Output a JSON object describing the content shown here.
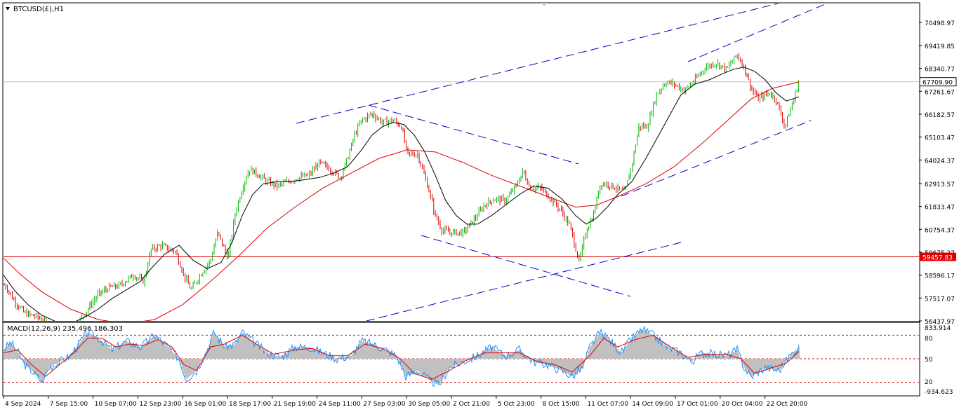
{
  "chart_data": [
    {
      "type": "line",
      "title": "BTCUSD(£),H1",
      "ylim": [
        56437.97,
        71398.9
      ],
      "y_ticks": [
        "70498.97",
        "69419.85",
        "68340.77",
        "67261.67",
        "66182.57",
        "65103.47",
        "64024.37",
        "62913.57",
        "61833.47",
        "60754.37",
        "59675.27",
        "58596.17",
        "57517.07",
        "56437.97"
      ],
      "x_ticks": [
        "4 Sep 2024",
        "7 Sep 15:00",
        "10 Sep 07:00",
        "12 Sep 23:00",
        "16 Sep 01:00",
        "18 Sep 17:00",
        "21 Sep 19:00",
        "24 Sep 11:00",
        "27 Sep 03:00",
        "30 Sep 05:00",
        "2 Oct 21:00",
        "5 Oct 23:00",
        "8 Oct 15:00",
        "11 Oct 07:00",
        "14 Oct 09:00",
        "17 Oct 01:00",
        "20 Oct 04:00",
        "22 Oct 20:00"
      ],
      "current_price": {
        "label": "67709.90",
        "value": 67709.9,
        "color": "#c0c0c0"
      },
      "horizontal_line": {
        "label": "59457.83",
        "value": 59457.83,
        "color": "#e00000"
      },
      "price_path": [
        [
          0,
          58300
        ],
        [
          10,
          58000
        ],
        [
          20,
          57400
        ],
        [
          35,
          56800
        ],
        [
          55,
          56600
        ],
        [
          70,
          56200
        ],
        [
          90,
          56000
        ],
        [
          110,
          56300
        ],
        [
          125,
          57000
        ],
        [
          140,
          57700
        ],
        [
          155,
          58000
        ],
        [
          170,
          58100
        ],
        [
          190,
          58600
        ],
        [
          205,
          58300
        ],
        [
          215,
          59800
        ],
        [
          230,
          60000
        ],
        [
          250,
          59700
        ],
        [
          262,
          58600
        ],
        [
          272,
          57900
        ],
        [
          285,
          58600
        ],
        [
          300,
          59300
        ],
        [
          310,
          60600
        ],
        [
          325,
          59400
        ],
        [
          335,
          61500
        ],
        [
          345,
          62700
        ],
        [
          355,
          63600
        ],
        [
          365,
          63400
        ],
        [
          380,
          63000
        ],
        [
          395,
          62800
        ],
        [
          410,
          63000
        ],
        [
          425,
          63200
        ],
        [
          440,
          63300
        ],
        [
          455,
          63900
        ],
        [
          470,
          63600
        ],
        [
          485,
          63200
        ],
        [
          495,
          64100
        ],
        [
          505,
          65200
        ],
        [
          515,
          65900
        ],
        [
          530,
          66200
        ],
        [
          545,
          65800
        ],
        [
          560,
          65900
        ],
        [
          572,
          65600
        ],
        [
          580,
          64300
        ],
        [
          595,
          64300
        ],
        [
          610,
          62700
        ],
        [
          620,
          61400
        ],
        [
          630,
          60700
        ],
        [
          645,
          60600
        ],
        [
          660,
          60600
        ],
        [
          675,
          61200
        ],
        [
          690,
          61900
        ],
        [
          705,
          62200
        ],
        [
          720,
          62100
        ],
        [
          735,
          62800
        ],
        [
          745,
          63500
        ],
        [
          755,
          62700
        ],
        [
          770,
          62700
        ],
        [
          785,
          62200
        ],
        [
          800,
          61600
        ],
        [
          812,
          60900
        ],
        [
          825,
          59200
        ],
        [
          835,
          60700
        ],
        [
          845,
          61400
        ],
        [
          855,
          62900
        ],
        [
          865,
          62900
        ],
        [
          878,
          62700
        ],
        [
          890,
          62500
        ],
        [
          900,
          63800
        ],
        [
          910,
          65600
        ],
        [
          922,
          65600
        ],
        [
          935,
          67100
        ],
        [
          948,
          67700
        ],
        [
          960,
          67600
        ],
        [
          975,
          67300
        ],
        [
          990,
          67800
        ],
        [
          1005,
          68400
        ],
        [
          1020,
          68600
        ],
        [
          1035,
          68300
        ],
        [
          1050,
          69000
        ],
        [
          1060,
          68400
        ],
        [
          1070,
          67400
        ],
        [
          1080,
          66900
        ],
        [
          1095,
          67200
        ],
        [
          1105,
          66900
        ],
        [
          1118,
          65600
        ],
        [
          1128,
          66600
        ],
        [
          1138,
          67700
        ]
      ],
      "ma_fast_path": [
        [
          5,
          58600
        ],
        [
          20,
          57900
        ],
        [
          40,
          57200
        ],
        [
          60,
          56700
        ],
        [
          80,
          56400
        ],
        [
          100,
          56300
        ],
        [
          120,
          56600
        ],
        [
          140,
          57000
        ],
        [
          160,
          57500
        ],
        [
          180,
          57900
        ],
        [
          200,
          58300
        ],
        [
          215,
          58900
        ],
        [
          235,
          59600
        ],
        [
          255,
          60000
        ],
        [
          275,
          59300
        ],
        [
          295,
          58900
        ],
        [
          315,
          59200
        ],
        [
          330,
          60100
        ],
        [
          345,
          61400
        ],
        [
          360,
          62400
        ],
        [
          375,
          62900
        ],
        [
          395,
          63000
        ],
        [
          415,
          63000
        ],
        [
          435,
          63100
        ],
        [
          455,
          63200
        ],
        [
          475,
          63400
        ],
        [
          495,
          63700
        ],
        [
          515,
          64500
        ],
        [
          530,
          65200
        ],
        [
          545,
          65600
        ],
        [
          560,
          65800
        ],
        [
          575,
          65700
        ],
        [
          590,
          65200
        ],
        [
          605,
          64400
        ],
        [
          620,
          63300
        ],
        [
          635,
          62100
        ],
        [
          650,
          61400
        ],
        [
          665,
          61000
        ],
        [
          680,
          61000
        ],
        [
          700,
          61400
        ],
        [
          720,
          61900
        ],
        [
          740,
          62400
        ],
        [
          760,
          62800
        ],
        [
          780,
          62700
        ],
        [
          800,
          62200
        ],
        [
          820,
          61400
        ],
        [
          835,
          61000
        ],
        [
          850,
          61300
        ],
        [
          865,
          61800
        ],
        [
          880,
          62400
        ],
        [
          900,
          63000
        ],
        [
          920,
          64100
        ],
        [
          940,
          65300
        ],
        [
          955,
          66200
        ],
        [
          970,
          67100
        ],
        [
          990,
          67600
        ],
        [
          1010,
          67800
        ],
        [
          1030,
          68100
        ],
        [
          1045,
          68300
        ],
        [
          1060,
          68400
        ],
        [
          1075,
          68200
        ],
        [
          1090,
          67800
        ],
        [
          1105,
          67200
        ],
        [
          1120,
          66800
        ],
        [
          1138,
          67000
        ]
      ],
      "ma_slow_path": [
        [
          5,
          59400
        ],
        [
          30,
          58600
        ],
        [
          60,
          57800
        ],
        [
          100,
          57000
        ],
        [
          140,
          56500
        ],
        [
          180,
          56300
        ],
        [
          220,
          56500
        ],
        [
          260,
          57200
        ],
        [
          300,
          58300
        ],
        [
          340,
          59500
        ],
        [
          380,
          60800
        ],
        [
          420,
          61800
        ],
        [
          460,
          62700
        ],
        [
          500,
          63400
        ],
        [
          540,
          64100
        ],
        [
          580,
          64500
        ],
        [
          620,
          64400
        ],
        [
          660,
          63900
        ],
        [
          700,
          63300
        ],
        [
          740,
          62800
        ],
        [
          780,
          62300
        ],
        [
          820,
          61800
        ],
        [
          850,
          61900
        ],
        [
          880,
          62300
        ],
        [
          920,
          62900
        ],
        [
          960,
          63700
        ],
        [
          1000,
          64800
        ],
        [
          1040,
          66000
        ],
        [
          1070,
          66900
        ],
        [
          1100,
          67400
        ],
        [
          1138,
          67700
        ]
      ],
      "trend_lines": [
        [
          [
            422,
            176
          ],
          [
            1112,
            4
          ]
        ],
        [
          [
            522,
            458
          ],
          [
            970,
            346
          ]
        ],
        [
          [
            980,
            88
          ],
          [
            1180,
            4
          ]
        ],
        [
          [
            600,
            336
          ],
          [
            898,
            423
          ]
        ],
        [
          [
            525,
            150
          ],
          [
            824,
            234
          ]
        ],
        [
          [
            885,
            280
          ],
          [
            1155,
            172
          ]
        ]
      ],
      "indicator": {
        "label": "MACD(12,26,9) 235.496 186.303",
        "y_ticks": [
          "833.914",
          "80",
          "50",
          "20",
          "-934.623"
        ],
        "hist_path": [
          [
            5,
            30
          ],
          [
            15,
            55
          ],
          [
            25,
            25
          ],
          [
            35,
            -20
          ],
          [
            45,
            -40
          ],
          [
            60,
            -80
          ],
          [
            70,
            -30
          ],
          [
            85,
            -10
          ],
          [
            100,
            10
          ],
          [
            115,
            60
          ],
          [
            125,
            90
          ],
          [
            140,
            70
          ],
          [
            160,
            30
          ],
          [
            180,
            60
          ],
          [
            200,
            40
          ],
          [
            220,
            80
          ],
          [
            240,
            40
          ],
          [
            255,
            0
          ],
          [
            265,
            -70
          ],
          [
            280,
            -40
          ],
          [
            295,
            30
          ],
          [
            305,
            90
          ],
          [
            320,
            40
          ],
          [
            335,
            50
          ],
          [
            345,
            90
          ],
          [
            360,
            60
          ],
          [
            380,
            20
          ],
          [
            400,
            5
          ],
          [
            420,
            40
          ],
          [
            440,
            40
          ],
          [
            460,
            20
          ],
          [
            480,
            0
          ],
          [
            500,
            10
          ],
          [
            515,
            60
          ],
          [
            530,
            50
          ],
          [
            550,
            30
          ],
          [
            565,
            10
          ],
          [
            578,
            -60
          ],
          [
            595,
            -40
          ],
          [
            610,
            -70
          ],
          [
            625,
            -90
          ],
          [
            640,
            -30
          ],
          [
            660,
            -10
          ],
          [
            680,
            10
          ],
          [
            700,
            40
          ],
          [
            720,
            10
          ],
          [
            740,
            30
          ],
          [
            760,
            -10
          ],
          [
            780,
            -20
          ],
          [
            800,
            -40
          ],
          [
            815,
            -60
          ],
          [
            830,
            -30
          ],
          [
            840,
            40
          ],
          [
            855,
            90
          ],
          [
            870,
            60
          ],
          [
            885,
            20
          ],
          [
            900,
            70
          ],
          [
            915,
            100
          ],
          [
            930,
            80
          ],
          [
            950,
            40
          ],
          [
            970,
            20
          ],
          [
            985,
            -10
          ],
          [
            1000,
            20
          ],
          [
            1020,
            15
          ],
          [
            1035,
            10
          ],
          [
            1050,
            30
          ],
          [
            1060,
            -30
          ],
          [
            1070,
            -60
          ],
          [
            1090,
            -30
          ],
          [
            1110,
            -40
          ],
          [
            1125,
            10
          ],
          [
            1138,
            40
          ]
        ],
        "signal_path": [
          [
            5,
            20
          ],
          [
            25,
            30
          ],
          [
            45,
            -20
          ],
          [
            65,
            -60
          ],
          [
            85,
            -20
          ],
          [
            105,
            20
          ],
          [
            125,
            70
          ],
          [
            145,
            70
          ],
          [
            165,
            40
          ],
          [
            185,
            50
          ],
          [
            205,
            45
          ],
          [
            225,
            65
          ],
          [
            245,
            40
          ],
          [
            262,
            -20
          ],
          [
            280,
            -40
          ],
          [
            300,
            40
          ],
          [
            320,
            50
          ],
          [
            345,
            80
          ],
          [
            365,
            50
          ],
          [
            390,
            15
          ],
          [
            420,
            30
          ],
          [
            445,
            35
          ],
          [
            470,
            10
          ],
          [
            495,
            10
          ],
          [
            520,
            50
          ],
          [
            545,
            35
          ],
          [
            570,
            0
          ],
          [
            590,
            -50
          ],
          [
            615,
            -70
          ],
          [
            640,
            -40
          ],
          [
            665,
            -5
          ],
          [
            690,
            20
          ],
          [
            715,
            20
          ],
          [
            740,
            20
          ],
          [
            765,
            -10
          ],
          [
            790,
            -20
          ],
          [
            815,
            -45
          ],
          [
            840,
            10
          ],
          [
            860,
            70
          ],
          [
            880,
            40
          ],
          [
            905,
            65
          ],
          [
            930,
            80
          ],
          [
            955,
            40
          ],
          [
            980,
            5
          ],
          [
            1005,
            15
          ],
          [
            1035,
            15
          ],
          [
            1055,
            0
          ],
          [
            1075,
            -50
          ],
          [
            1100,
            -30
          ],
          [
            1120,
            -15
          ],
          [
            1138,
            25
          ]
        ]
      },
      "colors": {
        "bull": "#00b400",
        "bear": "#e00000",
        "ma_fast": "#000000",
        "ma_slow": "#e00000",
        "trend": "#0000cc",
        "macd_line": "#1e90ff",
        "hist": "#c0c0c0",
        "signal": "#e00000",
        "level": "#e00000"
      }
    }
  ]
}
